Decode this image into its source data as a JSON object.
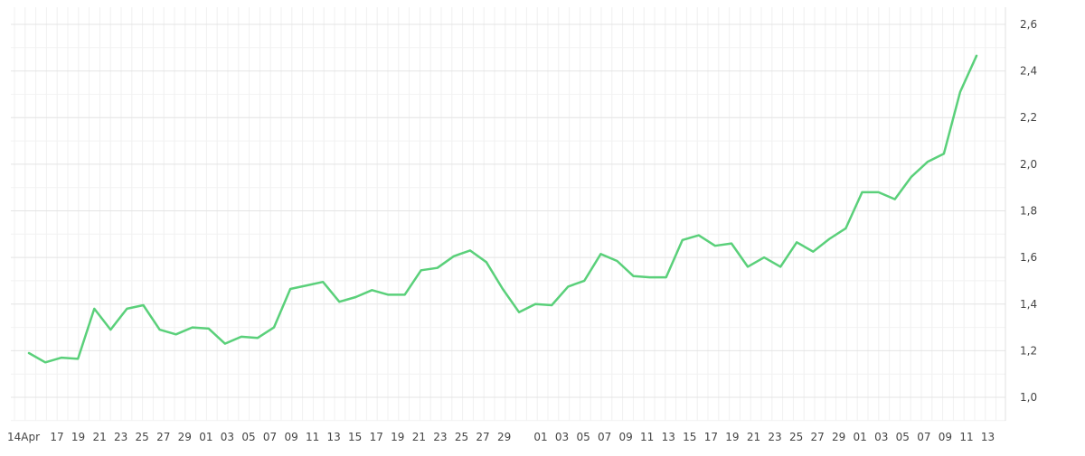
{
  "chart_data": {
    "type": "line",
    "title": "",
    "xlabel": "",
    "ylabel": "",
    "ylim": [
      0.9,
      2.6
    ],
    "yticks": [
      "1,0",
      "1,2",
      "1,4",
      "1,6",
      "1,8",
      "2,0",
      "2,2",
      "2,4",
      "2,6"
    ],
    "ytick_values": [
      1.0,
      1.2,
      1.4,
      1.6,
      1.8,
      2.0,
      2.2,
      2.4,
      2.6
    ],
    "xtick_labels": [
      "14Apr",
      "17",
      "19",
      "21",
      "23",
      "25",
      "27",
      "29",
      "01",
      "03",
      "05",
      "07",
      "09",
      "11",
      "13",
      "15",
      "17",
      "19",
      "21",
      "23",
      "25",
      "27",
      "29",
      "01",
      "03",
      "05",
      "07",
      "09",
      "11",
      "13",
      "15",
      "17",
      "19",
      "21",
      "23",
      "25",
      "27",
      "29",
      "01",
      "03",
      "05",
      "07",
      "09",
      "11",
      "13"
    ],
    "grid": true,
    "y_axis_position": "right",
    "line_color": "#5ad07a",
    "series": [
      {
        "values": [
          1.19,
          1.15,
          1.17,
          1.165,
          1.38,
          1.29,
          1.38,
          1.395,
          1.29,
          1.27,
          1.3,
          1.295,
          1.23,
          1.26,
          1.255,
          1.3,
          1.465,
          1.48,
          1.495,
          1.41,
          1.43,
          1.46,
          1.44,
          1.44,
          1.545,
          1.555,
          1.605,
          1.63,
          1.58,
          1.465,
          1.365,
          1.4,
          1.395,
          1.475,
          1.5,
          1.615,
          1.585,
          1.52,
          1.515,
          1.515,
          1.675,
          1.695,
          1.65,
          1.66,
          1.56,
          1.6,
          1.56,
          1.665,
          1.625,
          1.68,
          1.725,
          1.88,
          1.88,
          1.85,
          1.945,
          2.01,
          2.045,
          2.31,
          2.465
        ]
      }
    ]
  }
}
